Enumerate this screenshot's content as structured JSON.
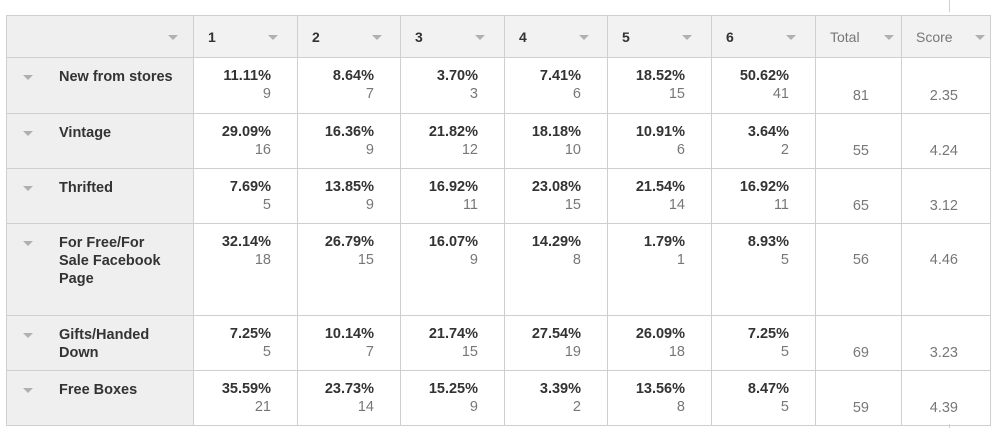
{
  "columns": [
    "1",
    "2",
    "3",
    "4",
    "5",
    "6"
  ],
  "total_label": "Total",
  "score_label": "Score",
  "rows": [
    {
      "label": "New from stores",
      "cells": [
        {
          "pct": "11.11%",
          "n": "9"
        },
        {
          "pct": "8.64%",
          "n": "7"
        },
        {
          "pct": "3.70%",
          "n": "3"
        },
        {
          "pct": "7.41%",
          "n": "6"
        },
        {
          "pct": "18.52%",
          "n": "15"
        },
        {
          "pct": "50.62%",
          "n": "41"
        }
      ],
      "total": "81",
      "score": "2.35"
    },
    {
      "label": "Vintage",
      "cells": [
        {
          "pct": "29.09%",
          "n": "16"
        },
        {
          "pct": "16.36%",
          "n": "9"
        },
        {
          "pct": "21.82%",
          "n": "12"
        },
        {
          "pct": "18.18%",
          "n": "10"
        },
        {
          "pct": "10.91%",
          "n": "6"
        },
        {
          "pct": "3.64%",
          "n": "2"
        }
      ],
      "total": "55",
      "score": "4.24"
    },
    {
      "label": "Thrifted",
      "cells": [
        {
          "pct": "7.69%",
          "n": "5"
        },
        {
          "pct": "13.85%",
          "n": "9"
        },
        {
          "pct": "16.92%",
          "n": "11"
        },
        {
          "pct": "23.08%",
          "n": "15"
        },
        {
          "pct": "21.54%",
          "n": "14"
        },
        {
          "pct": "16.92%",
          "n": "11"
        }
      ],
      "total": "65",
      "score": "3.12"
    },
    {
      "label": "For Free/For Sale Facebook Page",
      "cells": [
        {
          "pct": "32.14%",
          "n": "18"
        },
        {
          "pct": "26.79%",
          "n": "15"
        },
        {
          "pct": "16.07%",
          "n": "9"
        },
        {
          "pct": "14.29%",
          "n": "8"
        },
        {
          "pct": "1.79%",
          "n": "1"
        },
        {
          "pct": "8.93%",
          "n": "5"
        }
      ],
      "total": "56",
      "score": "4.46"
    },
    {
      "label": "Gifts/Handed Down",
      "cells": [
        {
          "pct": "7.25%",
          "n": "5"
        },
        {
          "pct": "10.14%",
          "n": "7"
        },
        {
          "pct": "21.74%",
          "n": "15"
        },
        {
          "pct": "27.54%",
          "n": "19"
        },
        {
          "pct": "26.09%",
          "n": "18"
        },
        {
          "pct": "7.25%",
          "n": "5"
        }
      ],
      "total": "69",
      "score": "3.23"
    },
    {
      "label": "Free Boxes",
      "cells": [
        {
          "pct": "35.59%",
          "n": "21"
        },
        {
          "pct": "23.73%",
          "n": "14"
        },
        {
          "pct": "15.25%",
          "n": "9"
        },
        {
          "pct": "3.39%",
          "n": "2"
        },
        {
          "pct": "13.56%",
          "n": "8"
        },
        {
          "pct": "8.47%",
          "n": "5"
        }
      ],
      "total": "59",
      "score": "4.39"
    }
  ]
}
